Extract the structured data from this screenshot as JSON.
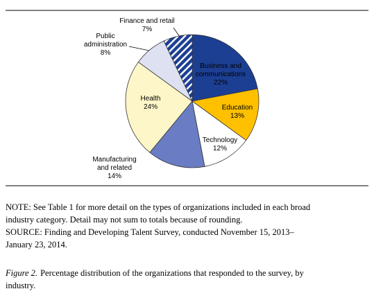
{
  "chart_data": {
    "type": "pie",
    "categories": [
      "Business and communications",
      "Education",
      "Technology",
      "Manufacturing and related",
      "Health",
      "Public administration",
      "Finance and retail"
    ],
    "values": [
      22,
      13,
      12,
      14,
      24,
      8,
      7
    ],
    "value_labels": [
      "22%",
      "13%",
      "12%",
      "14%",
      "24%",
      "8%",
      "7%"
    ],
    "colors": [
      "#1c3f94",
      "#ffc000",
      "#ffffff",
      "#6a7cc3",
      "#fdf6c8",
      "#dde1f1",
      "#1c3f94"
    ],
    "hatched": [
      false,
      false,
      false,
      false,
      false,
      false,
      true
    ]
  },
  "notes": {
    "note": [
      "NOTE: See Table 1 for more detail on the types of organizations included in each broad",
      "industry category. Detail may not sum to totals because of rounding."
    ],
    "source": [
      "SOURCE:  Finding and Developing Talent Survey, conducted November 15, 2013–",
      "January 23, 2014."
    ]
  },
  "caption": {
    "label": "Figure 2.",
    "lines": [
      "Percentage distribution of the organizations that responded to the survey, by",
      "industry."
    ]
  }
}
